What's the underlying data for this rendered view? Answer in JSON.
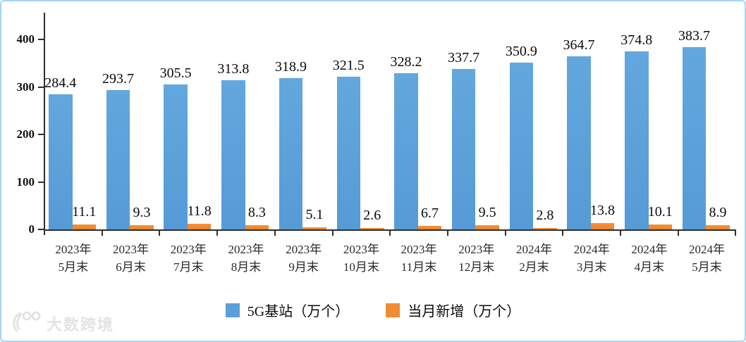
{
  "frame": {
    "border_color": "#A6D5F2",
    "background": "#FFFFFF"
  },
  "chart_data": {
    "type": "bar",
    "categories": [
      {
        "line1": "2023年",
        "line2": "5月末"
      },
      {
        "line1": "2023年",
        "line2": "6月末"
      },
      {
        "line1": "2023年",
        "line2": "7月末"
      },
      {
        "line1": "2023年",
        "line2": "8月末"
      },
      {
        "line1": "2023年",
        "line2": "9月末"
      },
      {
        "line1": "2023年",
        "line2": "10月末"
      },
      {
        "line1": "2023年",
        "line2": "11月末"
      },
      {
        "line1": "2023年",
        "line2": "12月末"
      },
      {
        "line1": "2024年",
        "line2": "2月末"
      },
      {
        "line1": "2024年",
        "line2": "3月末"
      },
      {
        "line1": "2024年",
        "line2": "4月末"
      },
      {
        "line1": "2024年",
        "line2": "5月末"
      }
    ],
    "series": [
      {
        "name": "5G基站（万个）",
        "color": "#5B9FD8",
        "values": [
          284.4,
          293.7,
          305.5,
          313.8,
          318.9,
          321.5,
          328.2,
          337.7,
          350.9,
          364.7,
          374.8,
          383.7
        ]
      },
      {
        "name": "当月新增（万个）",
        "color": "#F08B33",
        "values": [
          11.1,
          9.3,
          11.8,
          8.3,
          5.1,
          2.6,
          6.7,
          9.5,
          2.8,
          13.8,
          10.1,
          8.9
        ]
      }
    ],
    "yticks": [
      0,
      100,
      200,
      300,
      400
    ],
    "ylim": [
      0,
      450
    ],
    "grid": false,
    "legend_position": "bottom"
  },
  "watermark": {
    "logo": "100-swoosh-logo",
    "text": "大数跨境"
  }
}
